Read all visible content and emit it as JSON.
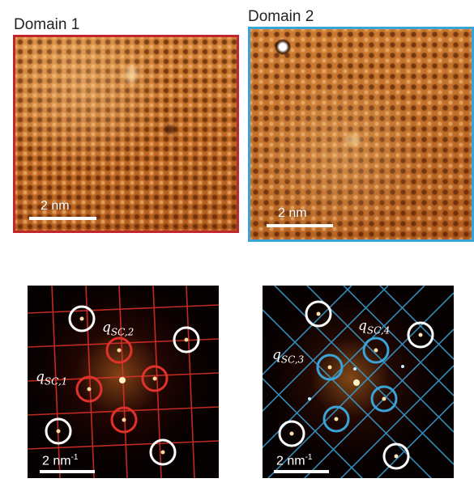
{
  "panels": {
    "domain1": {
      "title": "Domain 1",
      "scale_label": "2 nm",
      "frame_color": "#c0272d"
    },
    "domain2": {
      "title": "Domain 2",
      "scale_label": "2 nm",
      "frame_color": "#3aa3d8"
    }
  },
  "fft": {
    "left": {
      "scale_label": "2 nm",
      "scale_sup": "-1",
      "labels": [
        {
          "sym": "q",
          "sub": "SC,2"
        },
        {
          "sym": "q",
          "sub": "SC,1"
        }
      ],
      "line_color": "#e0322a",
      "inner_circle_color": "#e0322a",
      "outer_circle_color": "#ffffff"
    },
    "right": {
      "scale_label": "2 nm",
      "scale_sup": "-1",
      "labels": [
        {
          "sym": "q",
          "sub": "SC,4"
        },
        {
          "sym": "q",
          "sub": "SC,3"
        }
      ],
      "line_color": "#3aa3d8",
      "inner_circle_color": "#3aa3d8",
      "outer_circle_color": "#ffffff"
    }
  }
}
